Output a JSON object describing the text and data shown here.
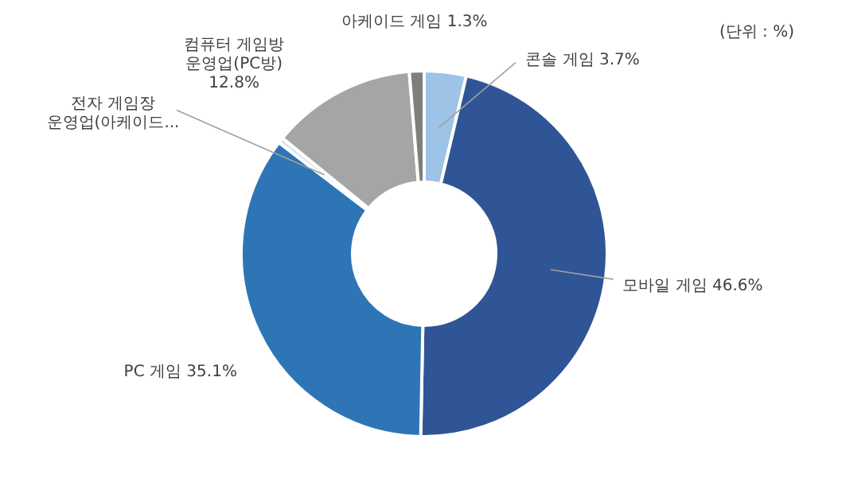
{
  "chart_data": {
    "type": "donut",
    "categories": [
      "콘솔 게임",
      "모바일 게임",
      "PC 게임",
      "전자 게임장 운영업(아케이드...",
      "컴퓨터 게임방 운영업(PC방)",
      "아케이드 게임"
    ],
    "values": [
      3.7,
      46.6,
      35.1,
      0.5,
      12.8,
      1.3
    ],
    "value_labels": [
      "3.7%",
      "46.6%",
      "35.1%",
      null,
      "12.8%",
      "1.3%"
    ],
    "colors": [
      "#9dc3e6",
      "#2f5597",
      "#2e75b6",
      "#dae3f3",
      "#a5a5a5",
      "#7f7f7f"
    ],
    "annotations": [
      "(단위 : %)"
    ]
  }
}
